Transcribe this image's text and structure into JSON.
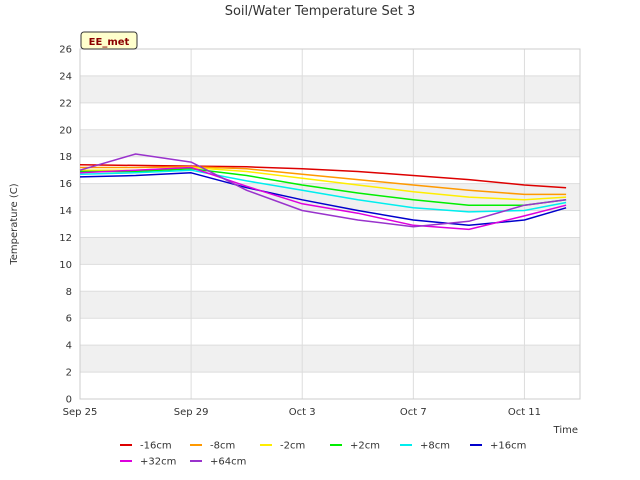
{
  "chart_data": {
    "type": "line",
    "title": "Soil/Water Temperature Set 3",
    "xlabel": "Time",
    "ylabel": "Temperature (C)",
    "badge": "EE_met",
    "xlim": [
      "2023-09-25",
      "2023-10-13"
    ],
    "ylim": [
      0,
      26
    ],
    "x_ticks": [
      {
        "date": "2023-09-25",
        "label": "Sep 25"
      },
      {
        "date": "2023-09-29",
        "label": "Sep 29"
      },
      {
        "date": "2023-10-03",
        "label": "Oct 3"
      },
      {
        "date": "2023-10-07",
        "label": "Oct 7"
      },
      {
        "date": "2023-10-11",
        "label": "Oct 11"
      }
    ],
    "y_ticks": [
      0,
      2,
      4,
      6,
      8,
      10,
      12,
      14,
      16,
      18,
      20,
      22,
      24,
      26
    ],
    "grid": true,
    "legend_position": "bottom",
    "series": [
      {
        "name": "-16cm",
        "color": "#dd0000",
        "x": [
          "2023-09-25",
          "2023-09-27",
          "2023-09-29",
          "2023-10-01",
          "2023-10-03",
          "2023-10-05",
          "2023-10-07",
          "2023-10-09",
          "2023-10-11",
          "2023-10-12.5"
        ],
        "y": [
          17.4,
          17.35,
          17.3,
          17.25,
          17.1,
          16.9,
          16.6,
          16.3,
          15.9,
          15.7
        ]
      },
      {
        "name": "-8cm",
        "color": "#ff9900",
        "x": [
          "2023-09-25",
          "2023-09-27",
          "2023-09-29",
          "2023-10-01",
          "2023-10-03",
          "2023-10-05",
          "2023-10-07",
          "2023-10-09",
          "2023-10-11",
          "2023-10-12.5"
        ],
        "y": [
          17.2,
          17.2,
          17.25,
          17.1,
          16.7,
          16.3,
          15.9,
          15.5,
          15.2,
          15.2
        ]
      },
      {
        "name": "-2cm",
        "color": "#ffee00",
        "x": [
          "2023-09-25",
          "2023-09-27",
          "2023-09-29",
          "2023-10-01",
          "2023-10-03",
          "2023-10-05",
          "2023-10-07",
          "2023-10-09",
          "2023-10-11",
          "2023-10-12.5"
        ],
        "y": [
          17.0,
          17.0,
          17.2,
          16.9,
          16.4,
          15.9,
          15.4,
          15.0,
          14.8,
          15.0
        ]
      },
      {
        "name": "+2cm",
        "color": "#00ee00",
        "x": [
          "2023-09-25",
          "2023-09-27",
          "2023-09-29",
          "2023-10-01",
          "2023-10-03",
          "2023-10-05",
          "2023-10-07",
          "2023-10-09",
          "2023-10-11",
          "2023-10-12.5"
        ],
        "y": [
          16.9,
          16.9,
          17.1,
          16.6,
          15.9,
          15.3,
          14.8,
          14.4,
          14.4,
          14.8
        ]
      },
      {
        "name": "+8cm",
        "color": "#00eeee",
        "x": [
          "2023-09-25",
          "2023-09-27",
          "2023-09-29",
          "2023-10-01",
          "2023-10-03",
          "2023-10-05",
          "2023-10-07",
          "2023-10-09",
          "2023-10-11",
          "2023-10-12.5"
        ],
        "y": [
          16.7,
          16.8,
          17.0,
          16.2,
          15.5,
          14.8,
          14.2,
          13.9,
          14.0,
          14.6
        ]
      },
      {
        "name": "+16cm",
        "color": "#0000cc",
        "x": [
          "2023-09-25",
          "2023-09-27",
          "2023-09-29",
          "2023-10-01",
          "2023-10-03",
          "2023-10-05",
          "2023-10-07",
          "2023-10-09",
          "2023-10-11",
          "2023-10-12.5"
        ],
        "y": [
          16.5,
          16.6,
          16.8,
          15.7,
          14.8,
          14.0,
          13.3,
          12.9,
          13.3,
          14.2
        ]
      },
      {
        "name": "+32cm",
        "color": "#dd00dd",
        "x": [
          "2023-09-25",
          "2023-09-27",
          "2023-09-29",
          "2023-10-01",
          "2023-10-03",
          "2023-10-05",
          "2023-10-07",
          "2023-10-09",
          "2023-10-11",
          "2023-10-12.5"
        ],
        "y": [
          16.8,
          17.0,
          17.2,
          15.8,
          14.5,
          13.8,
          12.9,
          12.6,
          13.6,
          14.4
        ]
      },
      {
        "name": "+64cm",
        "color": "#9933cc",
        "x": [
          "2023-09-25",
          "2023-09-27",
          "2023-09-29",
          "2023-10-01",
          "2023-10-03",
          "2023-10-05",
          "2023-10-07",
          "2023-10-09",
          "2023-10-11",
          "2023-10-12.5"
        ],
        "y": [
          17.0,
          18.2,
          17.6,
          15.5,
          14.0,
          13.3,
          12.8,
          13.2,
          14.4,
          14.8
        ]
      }
    ]
  }
}
